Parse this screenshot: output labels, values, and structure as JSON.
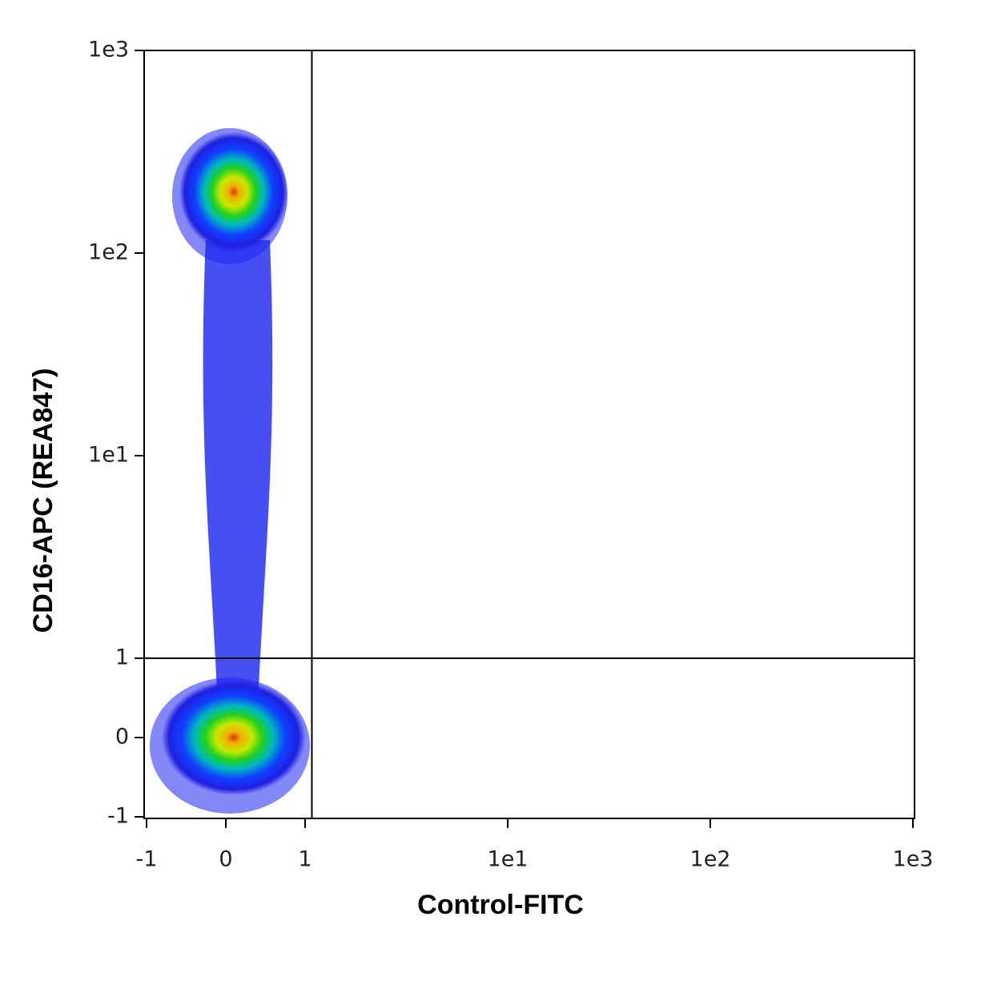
{
  "chart_data": {
    "type": "density",
    "x_label": "Control-FITC",
    "y_label": "CD16-APC (REA847)",
    "scale": "biexponential",
    "xlim": [
      -1,
      1000
    ],
    "ylim": [
      -1,
      1000
    ],
    "xticks": [
      -1,
      0,
      1,
      {
        "value": 10,
        "label": "1e1"
      },
      {
        "value": 100,
        "label": "1e2"
      },
      {
        "value": 1000,
        "label": "1e3"
      }
    ],
    "yticks": [
      -1,
      0,
      1,
      {
        "value": 10,
        "label": "1e1"
      },
      {
        "value": 100,
        "label": "1e2"
      },
      {
        "value": 1000,
        "label": "1e3"
      }
    ],
    "gates": {
      "x": 1.08,
      "y": 1
    },
    "populations": [
      {
        "x": 0.1,
        "y": 200
      },
      {
        "x": 0.1,
        "y": 0
      }
    ]
  }
}
